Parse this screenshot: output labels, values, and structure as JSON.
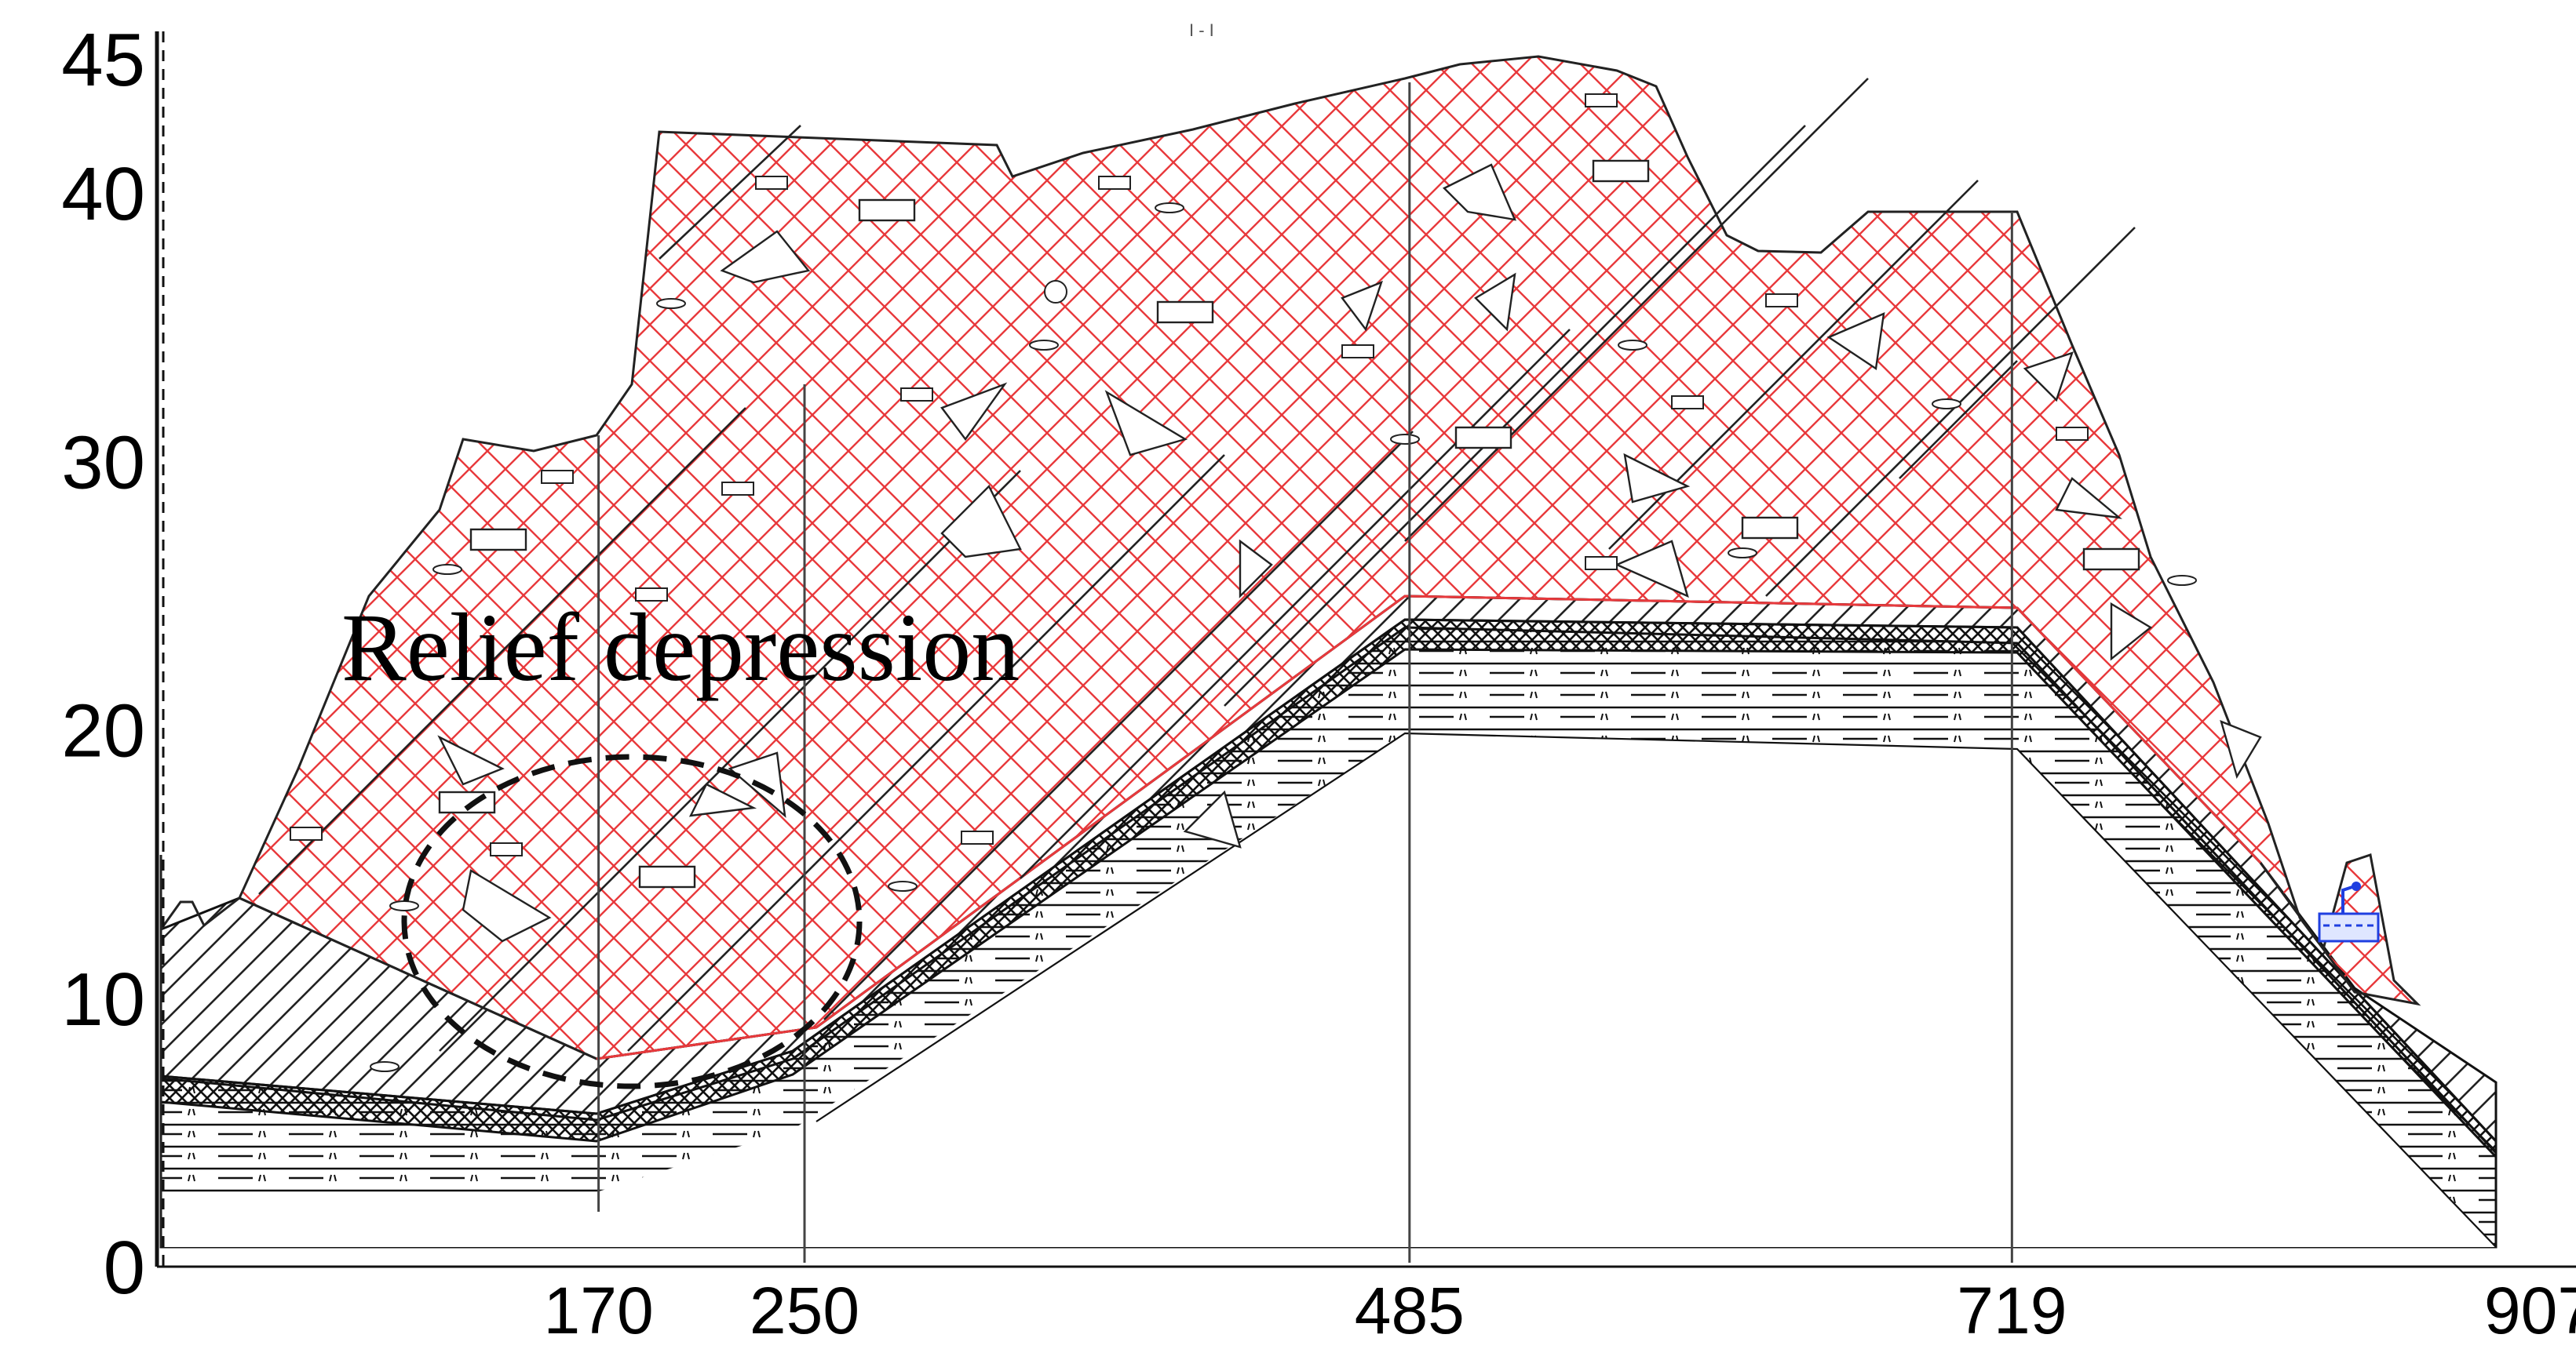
{
  "header_mark": "I - I",
  "annotation": "Relief depression",
  "y_axis": {
    "range": [
      0,
      45
    ],
    "ticks": [
      "45",
      "40",
      "30",
      "20",
      "10",
      "0"
    ]
  },
  "x_axis": {
    "range": [
      0,
      907
    ],
    "ticks": [
      "170",
      "250",
      "485",
      "719",
      "907"
    ]
  },
  "boreholes": [
    170,
    250,
    485,
    719
  ],
  "colors": {
    "hatch": "#e8393c",
    "ink": "#000000",
    "water": "#1f3fe0"
  }
}
